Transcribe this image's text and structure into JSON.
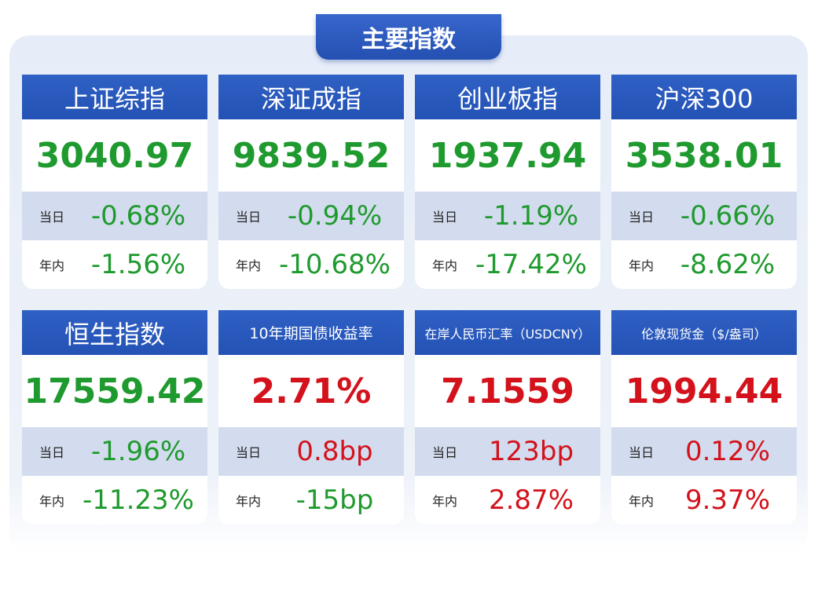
{
  "header": {
    "title": "主要指数"
  },
  "cards": [
    {
      "name": "上证综指",
      "value": "3040.97",
      "color": "#1f9a2f",
      "rows": [
        {
          "label": "当日",
          "value": "-0.68%",
          "color": "#1f9a2f"
        },
        {
          "label": "年内",
          "value": "-1.56%",
          "color": "#1f9a2f"
        }
      ]
    },
    {
      "name": "深证成指",
      "value": "9839.52",
      "color": "#1f9a2f",
      "rows": [
        {
          "label": "当日",
          "value": "-0.94%",
          "color": "#1f9a2f"
        },
        {
          "label": "年内",
          "value": "-10.68%",
          "color": "#1f9a2f"
        }
      ]
    },
    {
      "name": "创业板指",
      "value": "1937.94",
      "color": "#1f9a2f",
      "rows": [
        {
          "label": "当日",
          "value": "-1.19%",
          "color": "#1f9a2f"
        },
        {
          "label": "年内",
          "value": "-17.42%",
          "color": "#1f9a2f"
        }
      ]
    },
    {
      "name": "沪深300",
      "value": "3538.01",
      "color": "#1f9a2f",
      "rows": [
        {
          "label": "当日",
          "value": "-0.66%",
          "color": "#1f9a2f"
        },
        {
          "label": "年内",
          "value": "-8.62%",
          "color": "#1f9a2f"
        }
      ]
    },
    {
      "name": "恒生指数",
      "value": "17559.42",
      "color": "#1f9a2f",
      "rows": [
        {
          "label": "当日",
          "value": "-1.96%",
          "color": "#1f9a2f"
        },
        {
          "label": "年内",
          "value": "-11.23%",
          "color": "#1f9a2f"
        }
      ]
    },
    {
      "name": "10年期国债收益率",
      "value": "2.71%",
      "color": "#d3121c",
      "rows": [
        {
          "label": "当日",
          "value": "0.8bp",
          "color": "#d3121c"
        },
        {
          "label": "年内",
          "value": "-15bp",
          "color": "#1f9a2f"
        }
      ]
    },
    {
      "name": "在岸人民币汇率（USDCNY）",
      "value": "7.1559",
      "color": "#d3121c",
      "rows": [
        {
          "label": "当日",
          "value": "123bp",
          "color": "#d3121c"
        },
        {
          "label": "年内",
          "value": "2.87%",
          "color": "#d3121c"
        }
      ]
    },
    {
      "name": "伦敦现货金（$/盎司）",
      "value": "1994.44",
      "color": "#d3121c",
      "rows": [
        {
          "label": "当日",
          "value": "0.12%",
          "color": "#d3121c"
        },
        {
          "label": "年内",
          "value": "9.37%",
          "color": "#d3121c"
        }
      ]
    }
  ]
}
